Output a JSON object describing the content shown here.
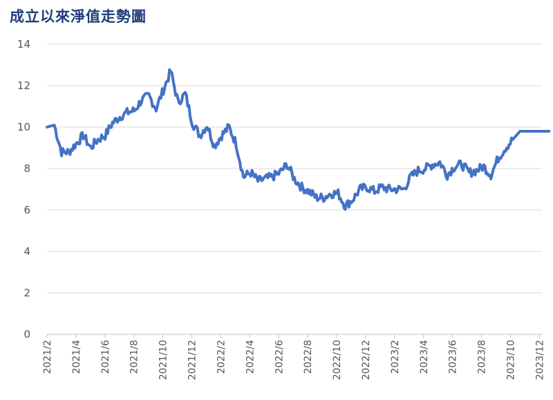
{
  "chart_data": {
    "type": "line",
    "title": "成立以來淨值走勢圖",
    "xlabel": "",
    "ylabel": "",
    "ylim": [
      0,
      14
    ],
    "y_ticks": [
      0,
      2,
      4,
      6,
      8,
      10,
      12,
      14
    ],
    "x_ticks": [
      "2021/2",
      "2021/4",
      "2021/6",
      "2021/8",
      "2021/10",
      "2021/12",
      "2022/2",
      "2022/4",
      "2022/6",
      "2022/8",
      "2022/10",
      "2022/12",
      "2023/2",
      "2023/4",
      "2023/6",
      "2023/8",
      "2023/10",
      "2023/12"
    ],
    "grid": true,
    "line_color": "#4472c4",
    "series": [
      {
        "x": [
          "2021/2",
          "2021/2.5",
          "2021/3",
          "2021/3.5",
          "2021/4",
          "2021/4.5",
          "2021/5",
          "2021/5.5",
          "2021/6",
          "2021/6.5",
          "2021/7",
          "2021/7.5",
          "2021/8",
          "2021/8.5",
          "2021/9",
          "2021/9.5",
          "2021/10",
          "2021/10.5",
          "2021/11",
          "2021/11.5",
          "2021/12",
          "2021/12.5",
          "2022/1",
          "2022/1.5",
          "2022/2",
          "2022/2.5",
          "2022/3",
          "2022/3.5",
          "2022/4",
          "2022/4.5",
          "2022/5",
          "2022/5.5",
          "2022/6",
          "2022/6.5",
          "2022/7",
          "2022/7.5",
          "2022/8",
          "2022/8.5",
          "2022/9",
          "2022/9.5",
          "2022/10",
          "2022/10.5",
          "2022/11",
          "2022/11.5",
          "2022/12",
          "2022/12.5",
          "2023/1",
          "2023/1.5",
          "2023/2",
          "2023/2.5",
          "2023/3",
          "2023/3.5",
          "2023/4",
          "2023/4.5",
          "2023/5",
          "2023/5.5",
          "2023/6",
          "2023/6.5",
          "2023/7",
          "2023/7.5",
          "2023/8",
          "2023/8.5",
          "2023/9",
          "2023/9.5",
          "2023/10",
          "2023/10.5",
          "2023/11",
          "2023/11.5",
          "2023/12",
          "2023/12.5"
        ],
        "values": [
          10.0,
          10.1,
          8.8,
          8.8,
          9.2,
          9.6,
          9.0,
          9.4,
          9.6,
          10.2,
          10.5,
          10.7,
          10.8,
          11.3,
          11.5,
          10.9,
          11.8,
          12.7,
          11.2,
          11.6,
          10.2,
          9.6,
          10.1,
          9.1,
          9.6,
          10.0,
          9.2,
          7.6,
          7.8,
          7.4,
          7.5,
          7.6,
          7.8,
          8.2,
          7.5,
          7.1,
          6.9,
          6.6,
          6.6,
          6.8,
          6.8,
          6.2,
          6.5,
          7.0,
          7.1,
          6.9,
          7.1,
          7.0,
          7.0,
          7.0,
          7.6,
          7.9,
          8.0,
          8.2,
          8.3,
          7.7,
          8.1,
          8.2,
          7.8,
          7.9,
          8.1,
          7.7,
          8.5,
          9.0,
          9.4,
          9.8,
          9.8,
          9.8,
          9.8,
          9.8
        ]
      }
    ]
  }
}
